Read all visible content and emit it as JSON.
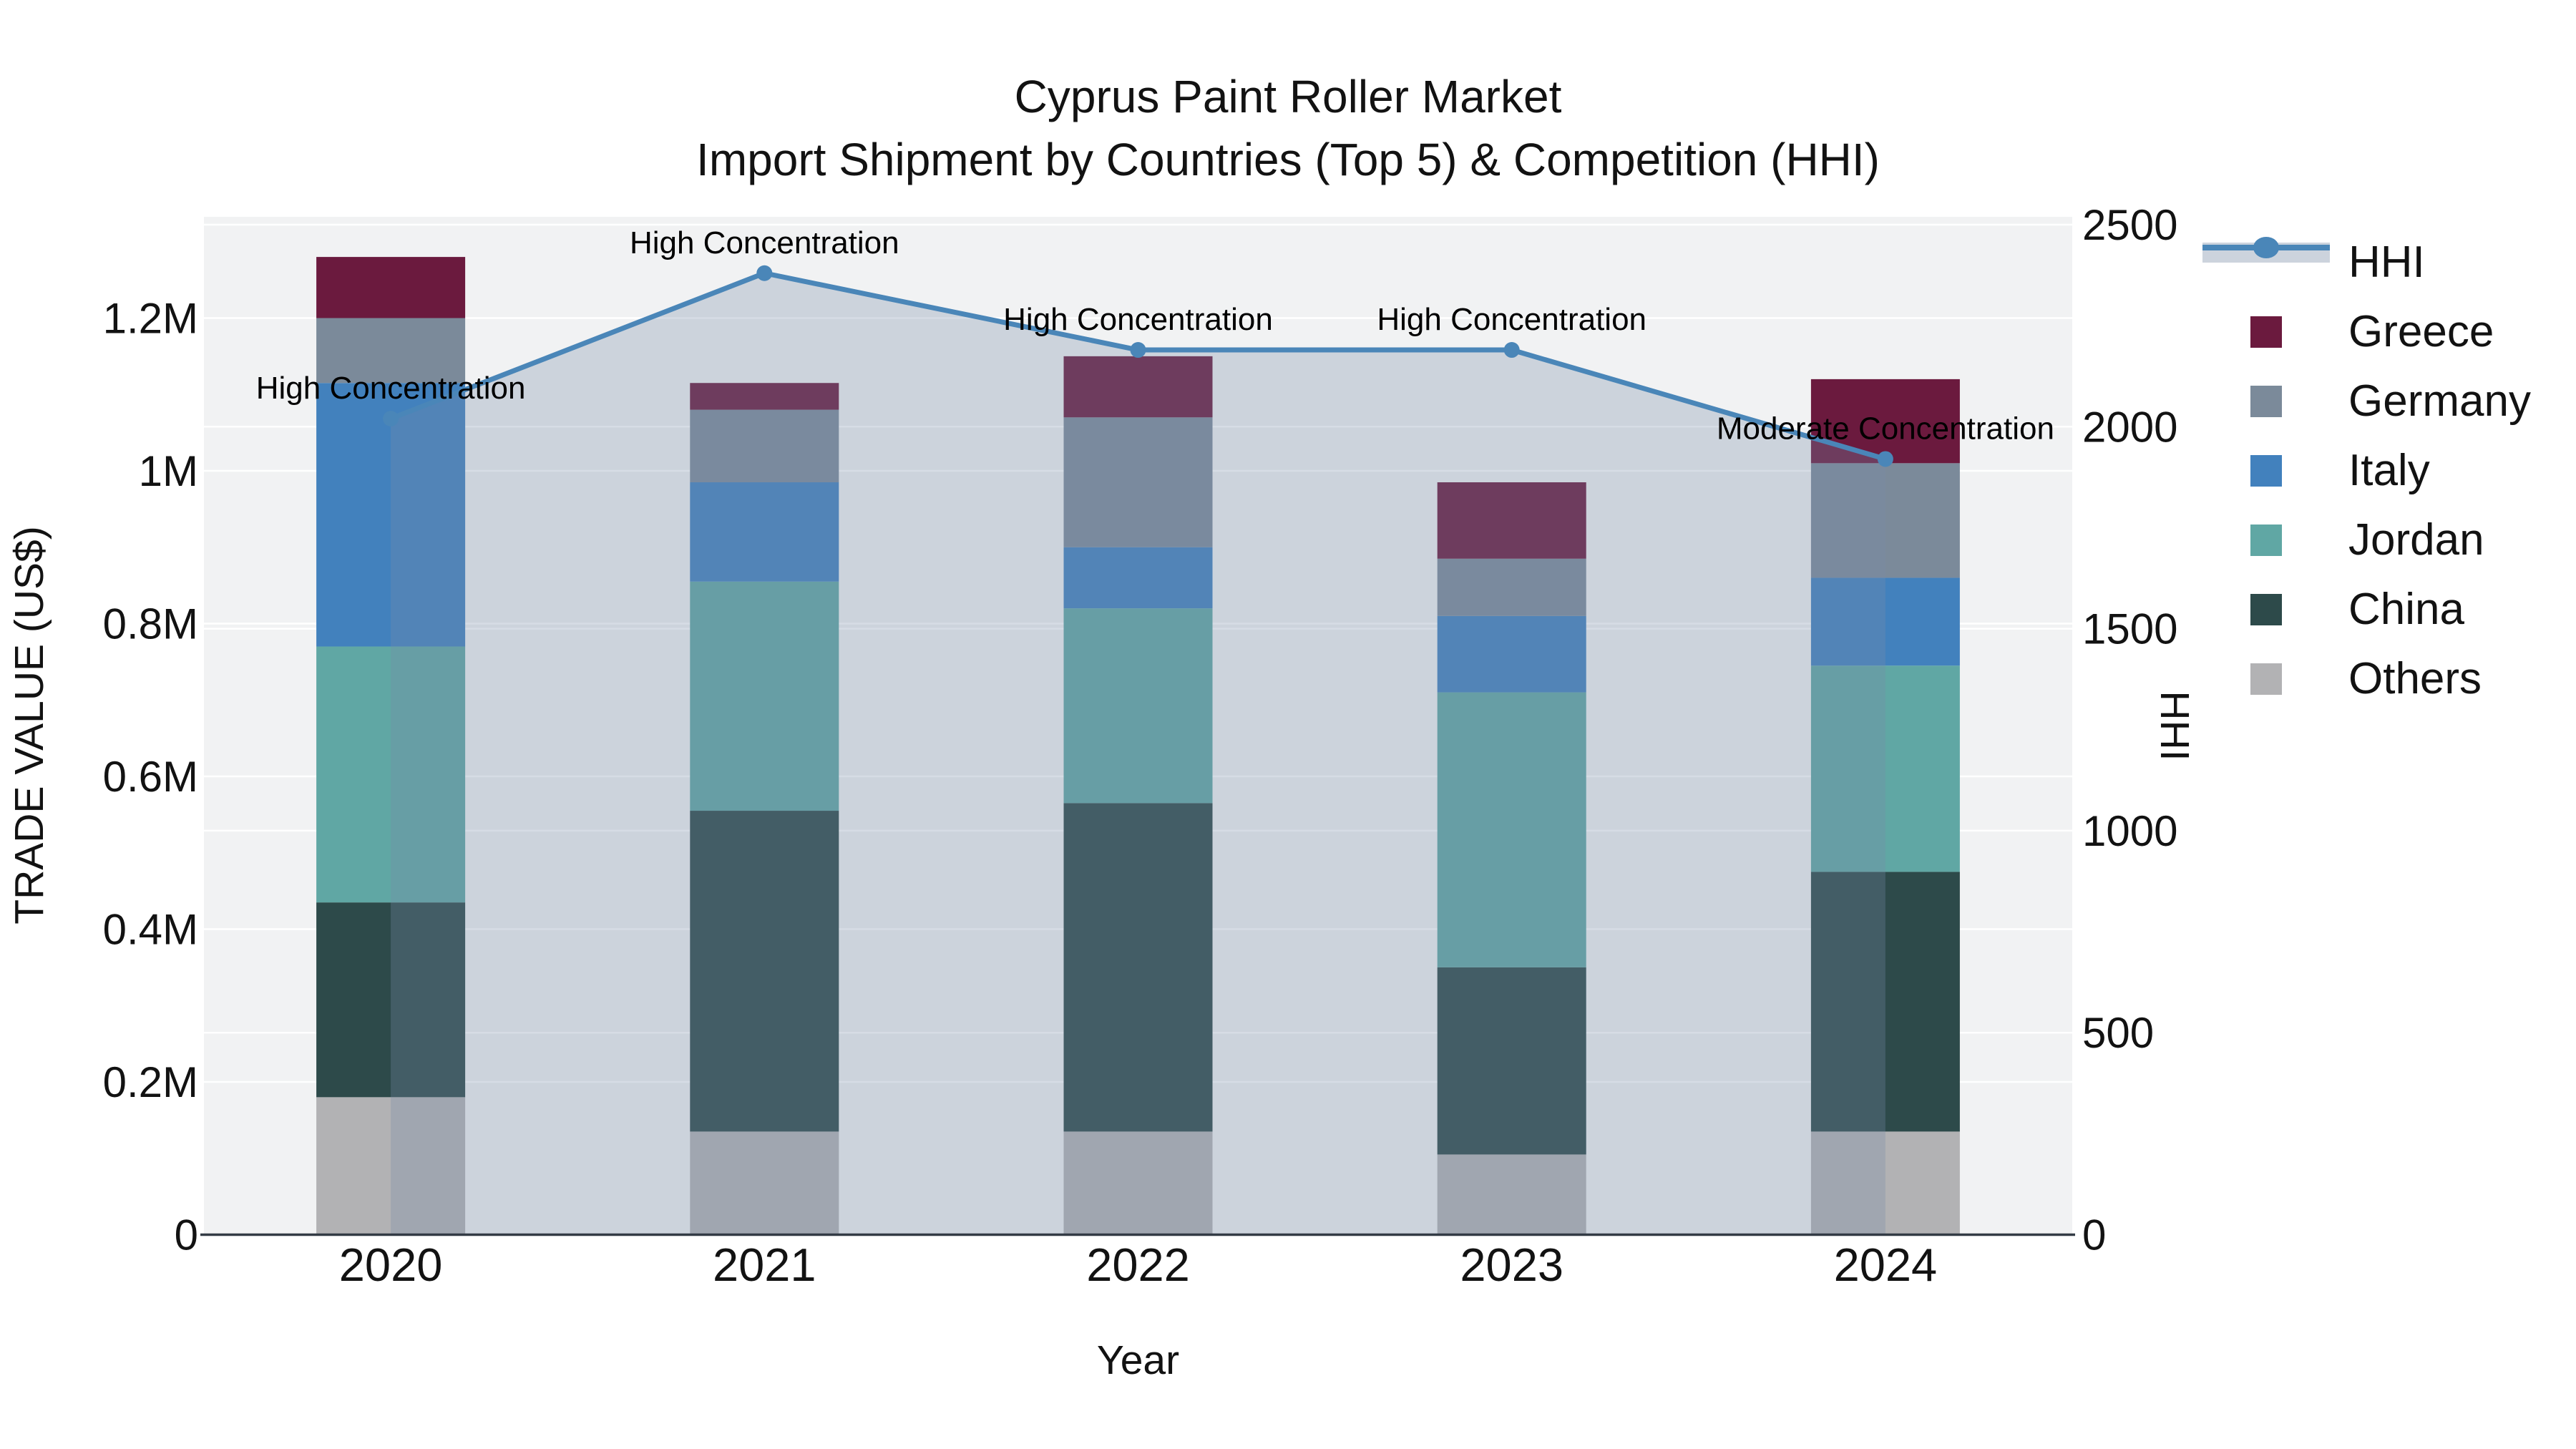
{
  "title": {
    "line1": "Cyprus Paint Roller Market",
    "line2": "Import Shipment by Countries (Top 5) & Competition (HHI)"
  },
  "chart_data": {
    "type": "combo: stacked bar (trade value) + line with area fill (HHI)",
    "categories": [
      "2020",
      "2021",
      "2022",
      "2023",
      "2024"
    ],
    "xlabel": "Year",
    "ylabel_left": "TRADE VALUE (US$)",
    "ylabel_right": "HHI",
    "ylim_left_usd": [
      0,
      1330000
    ],
    "ylim_right_hhi": [
      0,
      2520
    ],
    "grid": true,
    "legend_position": "right",
    "stack_order_bottom_to_top": [
      "Others",
      "China",
      "Jordan",
      "Italy",
      "Germany",
      "Greece"
    ],
    "series": [
      {
        "name": "Greece",
        "color": "#6b1a3e",
        "values_usd": [
          80000,
          35000,
          80000,
          100000,
          110000
        ]
      },
      {
        "name": "Germany",
        "color": "#7b8a9a",
        "values_usd": [
          85000,
          95000,
          170000,
          75000,
          150000
        ]
      },
      {
        "name": "Italy",
        "color": "#4281bd",
        "values_usd": [
          345000,
          130000,
          80000,
          100000,
          115000
        ]
      },
      {
        "name": "Jordan",
        "color": "#60a7a4",
        "values_usd": [
          335000,
          300000,
          255000,
          360000,
          270000
        ]
      },
      {
        "name": "China",
        "color": "#2d4a4a",
        "values_usd": [
          255000,
          420000,
          430000,
          245000,
          340000
        ]
      },
      {
        "name": "Others",
        "color": "#b2b2b4",
        "values_usd": [
          180000,
          135000,
          135000,
          105000,
          135000
        ]
      }
    ],
    "totals_usd": [
      1280000,
      1115000,
      1150000,
      985000,
      1120000
    ],
    "line_series": {
      "name": "HHI",
      "color": "#4a86b8",
      "fill_color": "rgba(120,140,168,0.30)",
      "values": [
        2020,
        2380,
        2190,
        2190,
        1920
      ]
    },
    "annotations": [
      {
        "x": "2020",
        "text": "High Concentration"
      },
      {
        "x": "2021",
        "text": "High Concentration"
      },
      {
        "x": "2022",
        "text": "High Concentration"
      },
      {
        "x": "2023",
        "text": "High Concentration"
      },
      {
        "x": "2024",
        "text": "Moderate Concentration"
      }
    ],
    "yticks_left": [
      {
        "v": 0,
        "label": "0"
      },
      {
        "v": 200000,
        "label": "0.2M"
      },
      {
        "v": 400000,
        "label": "0.4M"
      },
      {
        "v": 600000,
        "label": "0.6M"
      },
      {
        "v": 800000,
        "label": "0.8M"
      },
      {
        "v": 1000000,
        "label": "1M"
      },
      {
        "v": 1200000,
        "label": "1.2M"
      }
    ],
    "yticks_right": [
      {
        "v": 0,
        "label": "0"
      },
      {
        "v": 500,
        "label": "500"
      },
      {
        "v": 1000,
        "label": "1000"
      },
      {
        "v": 1500,
        "label": "1500"
      },
      {
        "v": 2000,
        "label": "2000"
      },
      {
        "v": 2500,
        "label": "2500"
      }
    ],
    "legend": [
      "HHI",
      "Greece",
      "Germany",
      "Italy",
      "Jordan",
      "China",
      "Others"
    ]
  },
  "colors": {
    "figure_bg": "#ffffff",
    "plot_bg": "#f1f2f3",
    "gridline": "#ffffff",
    "axis_line": "#333b45",
    "tick_text": "#121212",
    "annotation_text": "#000000"
  }
}
